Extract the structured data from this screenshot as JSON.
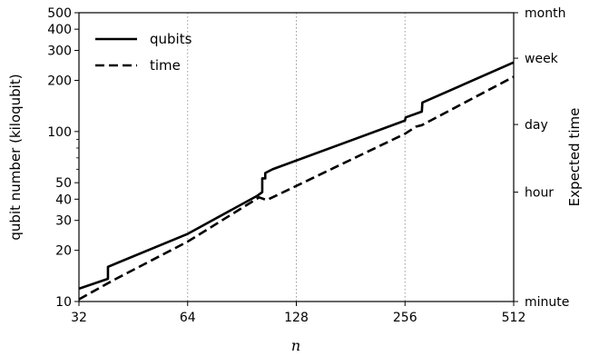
{
  "chart_data": {
    "type": "line",
    "xlabel": "n",
    "ylabel_left": "qubit number (kiloqubit)",
    "ylabel_right": "Expected time",
    "x_scale": "log2",
    "y_scale": "log10",
    "xlim": [
      32,
      512
    ],
    "ylim": [
      10,
      500
    ],
    "x_ticks": [
      {
        "value": 32,
        "label": "32"
      },
      {
        "value": 64,
        "label": "64"
      },
      {
        "value": 128,
        "label": "128"
      },
      {
        "value": 256,
        "label": "256"
      },
      {
        "value": 512,
        "label": "512"
      }
    ],
    "y_ticks_left": [
      {
        "value": 10,
        "label": "10"
      },
      {
        "value": 20,
        "label": "20"
      },
      {
        "value": 30,
        "label": "30"
      },
      {
        "value": 40,
        "label": "40"
      },
      {
        "value": 50,
        "label": "50"
      },
      {
        "value": 100,
        "label": "100"
      },
      {
        "value": 200,
        "label": "200"
      },
      {
        "value": 300,
        "label": "300"
      },
      {
        "value": 400,
        "label": "400"
      },
      {
        "value": 500,
        "label": "500"
      }
    ],
    "y_ticks_right": [
      {
        "value": 10,
        "label": "minute"
      },
      {
        "value": 44,
        "label": "hour"
      },
      {
        "value": 110,
        "label": "day"
      },
      {
        "value": 270,
        "label": "week"
      },
      {
        "value": 500,
        "label": "month"
      }
    ],
    "grid": "vertical-dotted",
    "legend_position": "top-left",
    "series": [
      {
        "name": "qubits",
        "style": "solid",
        "color": "#000000",
        "points": [
          [
            32,
            11.9
          ],
          [
            38.5,
            13.6
          ],
          [
            38.5,
            16.0
          ],
          [
            64,
            25.0
          ],
          [
            100,
            42.0
          ],
          [
            103,
            44.0
          ],
          [
            103,
            53.0
          ],
          [
            105,
            53.0
          ],
          [
            105,
            57.0
          ],
          [
            110,
            60.0
          ],
          [
            256,
            116.0
          ],
          [
            257,
            121.0
          ],
          [
            285,
            131.0
          ],
          [
            286,
            148.0
          ],
          [
            512,
            255.0
          ]
        ]
      },
      {
        "name": "time",
        "style": "dashed",
        "color": "#000000",
        "points": [
          [
            32,
            10.3
          ],
          [
            40,
            13.4
          ],
          [
            64,
            22.5
          ],
          [
            101,
            41.0
          ],
          [
            106,
            39.5
          ],
          [
            256,
            97.0
          ],
          [
            275,
            107.0
          ],
          [
            285,
            109.0
          ],
          [
            512,
            210.0
          ]
        ]
      }
    ]
  }
}
